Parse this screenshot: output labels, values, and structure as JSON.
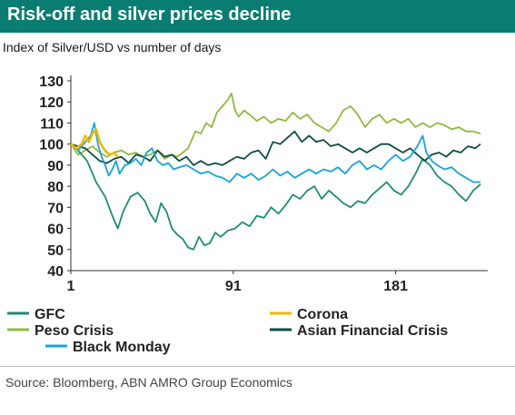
{
  "header": {
    "title": "Risk-off and silver prices decline",
    "subtitle": "Index of Silver/USD vs number of days"
  },
  "footer": {
    "source": "Source: Bloomberg, ABN AMRO Group Economics"
  },
  "chart_data": {
    "type": "line",
    "title": "",
    "xlabel": "",
    "ylabel": "",
    "xlim": [
      1,
      230
    ],
    "ylim": [
      40,
      130
    ],
    "x_ticks": [
      1,
      91,
      181
    ],
    "y_ticks": [
      40,
      50,
      60,
      70,
      80,
      90,
      100,
      110,
      120,
      130
    ],
    "grid": false,
    "legend_position": "bottom",
    "series": [
      {
        "name": "GFC",
        "color": "#1e8c72",
        "points": [
          [
            1,
            100
          ],
          [
            5,
            97
          ],
          [
            10,
            92
          ],
          [
            15,
            82
          ],
          [
            20,
            75
          ],
          [
            24,
            66
          ],
          [
            27,
            60
          ],
          [
            30,
            68
          ],
          [
            34,
            75
          ],
          [
            38,
            77
          ],
          [
            42,
            73
          ],
          [
            45,
            67
          ],
          [
            48,
            63
          ],
          [
            51,
            72
          ],
          [
            54,
            68
          ],
          [
            57,
            60
          ],
          [
            60,
            57
          ],
          [
            63,
            55
          ],
          [
            66,
            51
          ],
          [
            69,
            50
          ],
          [
            72,
            56
          ],
          [
            75,
            52
          ],
          [
            78,
            53
          ],
          [
            81,
            58
          ],
          [
            84,
            56
          ],
          [
            88,
            59
          ],
          [
            92,
            60
          ],
          [
            96,
            63
          ],
          [
            100,
            61
          ],
          [
            104,
            66
          ],
          [
            108,
            65
          ],
          [
            112,
            70
          ],
          [
            116,
            67
          ],
          [
            120,
            71
          ],
          [
            124,
            76
          ],
          [
            128,
            74
          ],
          [
            132,
            78
          ],
          [
            136,
            80
          ],
          [
            140,
            74
          ],
          [
            144,
            78
          ],
          [
            148,
            75
          ],
          [
            152,
            72
          ],
          [
            156,
            70
          ],
          [
            160,
            73
          ],
          [
            164,
            72
          ],
          [
            168,
            76
          ],
          [
            172,
            79
          ],
          [
            176,
            82
          ],
          [
            180,
            78
          ],
          [
            184,
            76
          ],
          [
            188,
            80
          ],
          [
            192,
            86
          ],
          [
            196,
            93
          ],
          [
            200,
            90
          ],
          [
            204,
            85
          ],
          [
            208,
            82
          ],
          [
            212,
            80
          ],
          [
            216,
            76
          ],
          [
            220,
            73
          ],
          [
            224,
            78
          ],
          [
            228,
            81
          ]
        ]
      },
      {
        "name": "Corona",
        "color": "#f2b700",
        "points": [
          [
            1,
            100
          ],
          [
            4,
            98
          ],
          [
            7,
            100
          ],
          [
            9,
            104
          ],
          [
            11,
            101
          ],
          [
            13,
            105
          ],
          [
            15,
            107
          ],
          [
            17,
            101
          ],
          [
            19,
            98
          ],
          [
            21,
            96
          ],
          [
            23,
            95
          ],
          [
            25,
            96
          ],
          [
            27,
            94
          ]
        ]
      },
      {
        "name": "Peso Crisis",
        "color": "#8fba3f",
        "points": [
          [
            1,
            100
          ],
          [
            5,
            95
          ],
          [
            9,
            97
          ],
          [
            13,
            99
          ],
          [
            17,
            96
          ],
          [
            21,
            94
          ],
          [
            25,
            96
          ],
          [
            29,
            97
          ],
          [
            33,
            95
          ],
          [
            37,
            96
          ],
          [
            41,
            94
          ],
          [
            45,
            95
          ],
          [
            49,
            97
          ],
          [
            53,
            93
          ],
          [
            57,
            95
          ],
          [
            60,
            94
          ],
          [
            63,
            96
          ],
          [
            66,
            98
          ],
          [
            68,
            102
          ],
          [
            70,
            106
          ],
          [
            73,
            105
          ],
          [
            76,
            110
          ],
          [
            79,
            108
          ],
          [
            82,
            115
          ],
          [
            85,
            118
          ],
          [
            88,
            121
          ],
          [
            90,
            124
          ],
          [
            92,
            116
          ],
          [
            94,
            113
          ],
          [
            97,
            116
          ],
          [
            100,
            114
          ],
          [
            104,
            111
          ],
          [
            108,
            113
          ],
          [
            112,
            110
          ],
          [
            116,
            112
          ],
          [
            120,
            111
          ],
          [
            124,
            115
          ],
          [
            128,
            112
          ],
          [
            132,
            114
          ],
          [
            136,
            110
          ],
          [
            140,
            108
          ],
          [
            144,
            106
          ],
          [
            148,
            110
          ],
          [
            152,
            116
          ],
          [
            156,
            118
          ],
          [
            160,
            114
          ],
          [
            164,
            108
          ],
          [
            168,
            112
          ],
          [
            172,
            114
          ],
          [
            176,
            110
          ],
          [
            180,
            112
          ],
          [
            184,
            110
          ],
          [
            188,
            112
          ],
          [
            192,
            108
          ],
          [
            196,
            110
          ],
          [
            200,
            108
          ],
          [
            204,
            110
          ],
          [
            208,
            109
          ],
          [
            212,
            107
          ],
          [
            216,
            108
          ],
          [
            220,
            106
          ],
          [
            224,
            106
          ],
          [
            228,
            105
          ]
        ]
      },
      {
        "name": "Asian Financial Crisis",
        "color": "#0e4d45",
        "points": [
          [
            1,
            100
          ],
          [
            5,
            99
          ],
          [
            9,
            98
          ],
          [
            13,
            95
          ],
          [
            17,
            92
          ],
          [
            21,
            91
          ],
          [
            25,
            93
          ],
          [
            29,
            94
          ],
          [
            33,
            91
          ],
          [
            37,
            95
          ],
          [
            41,
            94
          ],
          [
            45,
            92
          ],
          [
            49,
            97
          ],
          [
            53,
            94
          ],
          [
            57,
            95
          ],
          [
            61,
            92
          ],
          [
            65,
            94
          ],
          [
            69,
            90
          ],
          [
            73,
            92
          ],
          [
            77,
            90
          ],
          [
            81,
            91
          ],
          [
            85,
            90
          ],
          [
            89,
            92
          ],
          [
            93,
            94
          ],
          [
            97,
            93
          ],
          [
            101,
            96
          ],
          [
            105,
            97
          ],
          [
            109,
            93
          ],
          [
            113,
            101
          ],
          [
            117,
            100
          ],
          [
            121,
            103
          ],
          [
            125,
            106
          ],
          [
            129,
            101
          ],
          [
            133,
            104
          ],
          [
            137,
            101
          ],
          [
            141,
            102
          ],
          [
            145,
            99
          ],
          [
            149,
            100
          ],
          [
            153,
            98
          ],
          [
            157,
            96
          ],
          [
            161,
            98
          ],
          [
            165,
            96
          ],
          [
            169,
            98
          ],
          [
            173,
            100
          ],
          [
            177,
            100
          ],
          [
            181,
            98
          ],
          [
            185,
            96
          ],
          [
            189,
            98
          ],
          [
            193,
            95
          ],
          [
            197,
            92
          ],
          [
            201,
            95
          ],
          [
            205,
            96
          ],
          [
            209,
            94
          ],
          [
            213,
            97
          ],
          [
            217,
            96
          ],
          [
            221,
            99
          ],
          [
            225,
            98
          ],
          [
            228,
            100
          ]
        ]
      },
      {
        "name": "Black Monday",
        "color": "#18a3dc",
        "points": [
          [
            1,
            100
          ],
          [
            5,
            97
          ],
          [
            9,
            101
          ],
          [
            12,
            104
          ],
          [
            14,
            110
          ],
          [
            16,
            100
          ],
          [
            18,
            94
          ],
          [
            20,
            90
          ],
          [
            22,
            85
          ],
          [
            24,
            88
          ],
          [
            26,
            92
          ],
          [
            28,
            86
          ],
          [
            31,
            90
          ],
          [
            34,
            91
          ],
          [
            37,
            93
          ],
          [
            40,
            90
          ],
          [
            43,
            96
          ],
          [
            46,
            98
          ],
          [
            49,
            92
          ],
          [
            52,
            90
          ],
          [
            55,
            91
          ],
          [
            58,
            88
          ],
          [
            61,
            89
          ],
          [
            65,
            90
          ],
          [
            69,
            88
          ],
          [
            73,
            86
          ],
          [
            77,
            87
          ],
          [
            81,
            85
          ],
          [
            85,
            84
          ],
          [
            89,
            82
          ],
          [
            93,
            86
          ],
          [
            97,
            84
          ],
          [
            101,
            86
          ],
          [
            105,
            83
          ],
          [
            109,
            85
          ],
          [
            113,
            88
          ],
          [
            117,
            85
          ],
          [
            121,
            87
          ],
          [
            125,
            84
          ],
          [
            129,
            86
          ],
          [
            133,
            88
          ],
          [
            137,
            86
          ],
          [
            141,
            88
          ],
          [
            145,
            87
          ],
          [
            149,
            89
          ],
          [
            153,
            86
          ],
          [
            157,
            90
          ],
          [
            161,
            92
          ],
          [
            165,
            88
          ],
          [
            169,
            90
          ],
          [
            173,
            88
          ],
          [
            177,
            92
          ],
          [
            181,
            95
          ],
          [
            185,
            92
          ],
          [
            189,
            94
          ],
          [
            193,
            99
          ],
          [
            196,
            104
          ],
          [
            198,
            96
          ],
          [
            201,
            92
          ],
          [
            204,
            90
          ],
          [
            208,
            88
          ],
          [
            212,
            89
          ],
          [
            216,
            86
          ],
          [
            220,
            84
          ],
          [
            224,
            82
          ],
          [
            228,
            82
          ]
        ]
      }
    ]
  }
}
